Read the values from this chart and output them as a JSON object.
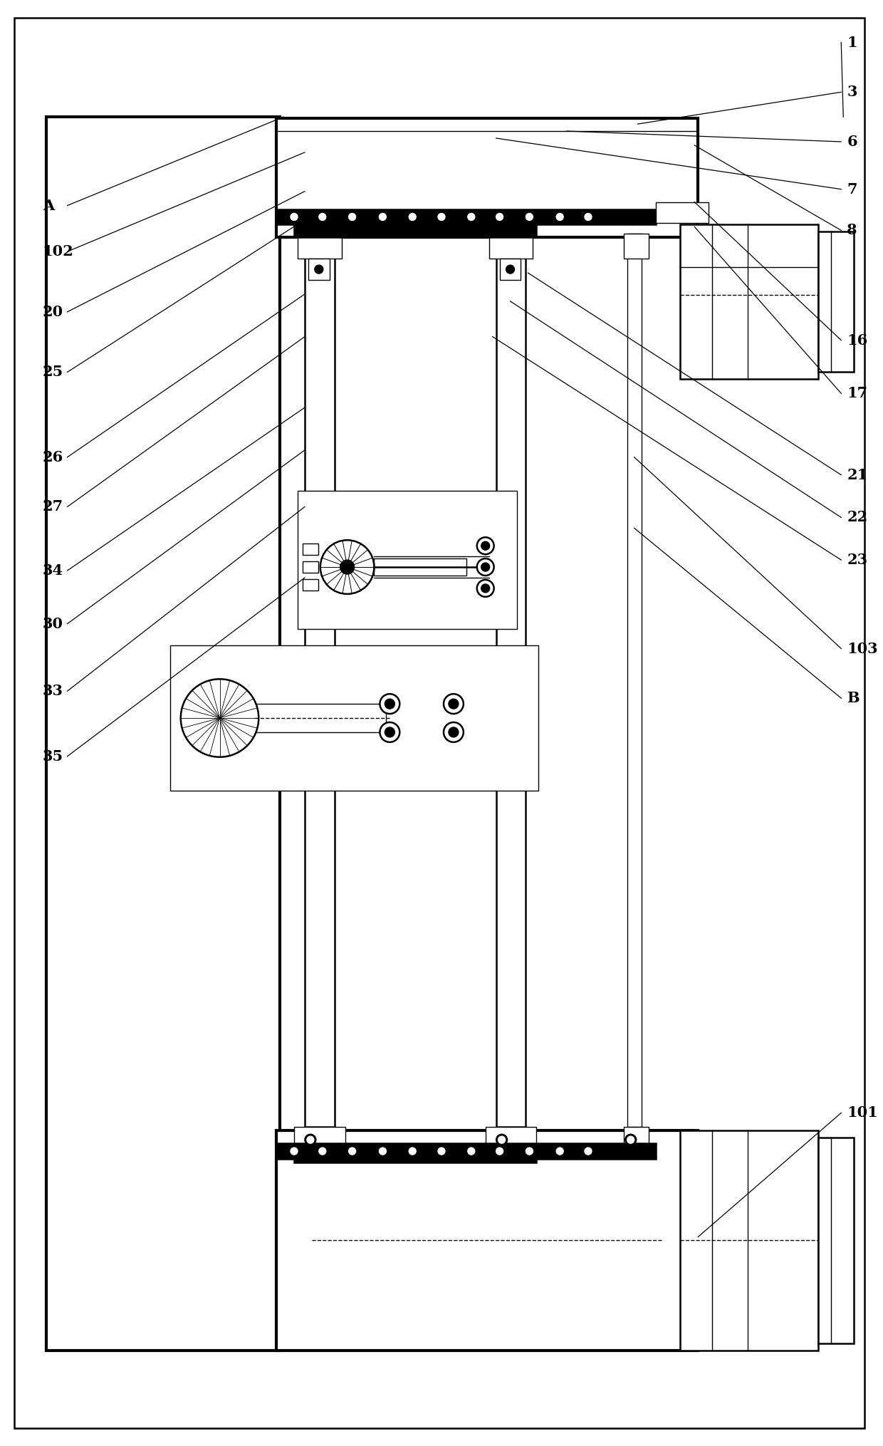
{
  "bg_color": "#ffffff",
  "fig_width": 12.4,
  "fig_height": 20.3,
  "right_labels": [
    [
      "1",
      0.967
    ],
    [
      "3",
      0.938
    ],
    [
      "6",
      0.905
    ],
    [
      "7",
      0.878
    ],
    [
      "8",
      0.855
    ],
    [
      "16",
      0.768
    ],
    [
      "17",
      0.73
    ],
    [
      "21",
      0.675
    ],
    [
      "22",
      0.645
    ],
    [
      "23",
      0.615
    ],
    [
      "103",
      0.555
    ],
    [
      "B",
      0.52
    ],
    [
      "101",
      0.235
    ]
  ],
  "left_labels": [
    [
      "A",
      0.862
    ],
    [
      "102",
      0.828
    ],
    [
      "20",
      0.788
    ],
    [
      "25",
      0.748
    ],
    [
      "26",
      0.69
    ],
    [
      "27",
      0.658
    ],
    [
      "34",
      0.612
    ],
    [
      "30",
      0.572
    ],
    [
      "33",
      0.527
    ],
    [
      "35",
      0.482
    ]
  ]
}
